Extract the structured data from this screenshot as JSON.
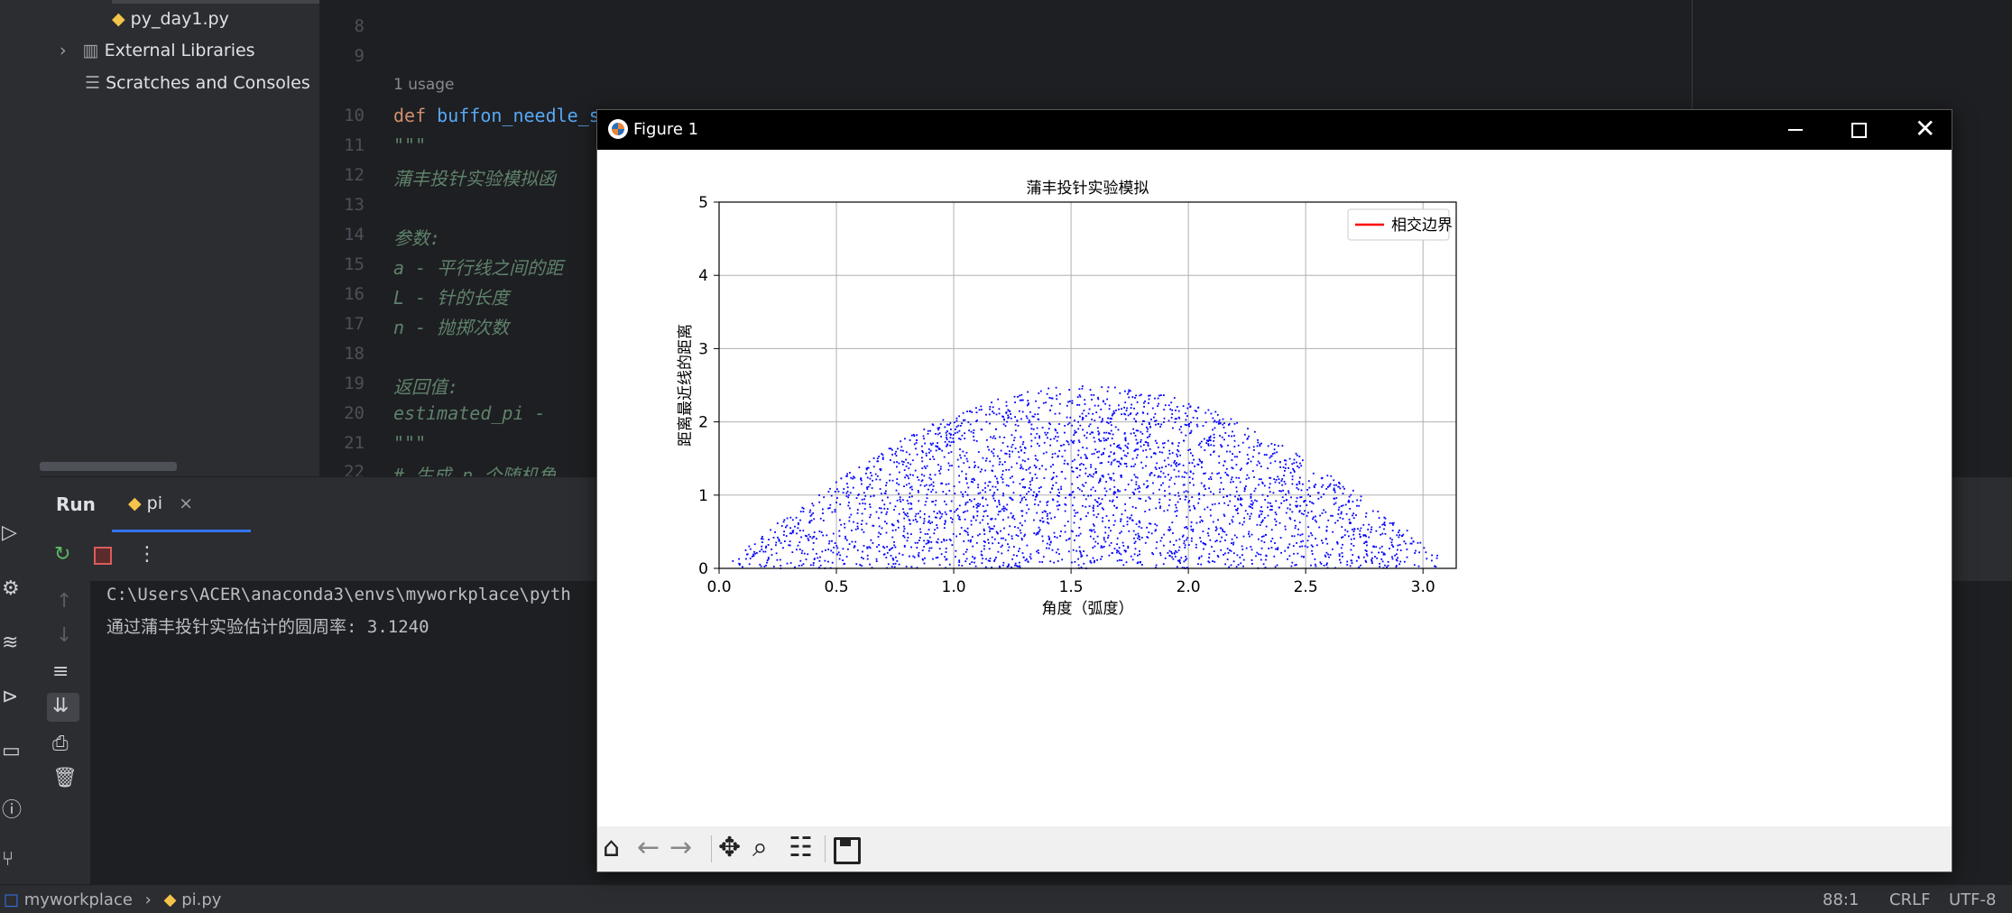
{
  "project": {
    "file_item": "py_day1.py",
    "external_libraries": "External Libraries",
    "scratches": "Scratches and Consoles"
  },
  "editor": {
    "lines": [
      {
        "n": "8",
        "text": ""
      },
      {
        "n": "9",
        "text": ""
      },
      {
        "n": "10",
        "text": "def buffon_needle_s"
      },
      {
        "n": "11",
        "text": "    \"\"\""
      },
      {
        "n": "12",
        "text": "    蒲丰投针实验模拟函"
      },
      {
        "n": "13",
        "text": ""
      },
      {
        "n": "14",
        "text": "    参数:"
      },
      {
        "n": "15",
        "text": "    a - 平行线之间的距"
      },
      {
        "n": "16",
        "text": "    L - 针的长度"
      },
      {
        "n": "17",
        "text": "    n - 抛掷次数"
      },
      {
        "n": "18",
        "text": ""
      },
      {
        "n": "19",
        "text": "    返回值:"
      },
      {
        "n": "20",
        "text": "    estimated_pi -"
      },
      {
        "n": "21",
        "text": "    \"\"\""
      },
      {
        "n": "22",
        "text": "    # 生成 n 个随机角"
      }
    ],
    "usage_hint": "1 usage"
  },
  "run": {
    "title": "Run",
    "tab": "pi",
    "console_lines": [
      "C:\\Users\\ACER\\anaconda3\\envs\\myworkplace\\pyth",
      "通过蒲丰投针实验估计的圆周率: 3.1240"
    ]
  },
  "status": {
    "project": "myworkplace",
    "file": "pi.py",
    "position": "88:1",
    "line_sep": "CRLF",
    "encoding": "UTF-8"
  },
  "figure": {
    "window_title": "Figure 1",
    "colors": {
      "points": "#0000ff",
      "line": "#ff0000"
    }
  },
  "chart_data": {
    "type": "scatter",
    "title": "蒲丰投针实验模拟",
    "xlabel": "角度（弧度）",
    "ylabel": "距离最近线的距离",
    "xlim": [
      0,
      3.1416
    ],
    "ylim": [
      0,
      5
    ],
    "xticks": [
      "0.0",
      "0.5",
      "1.0",
      "1.5",
      "2.0",
      "2.5",
      "3.0"
    ],
    "yticks": [
      "0",
      "1",
      "2",
      "3",
      "4",
      "5"
    ],
    "grid": true,
    "legend": {
      "placement": "top-right",
      "entries": [
        "相交边界"
      ]
    },
    "series": [
      {
        "name": "相交边界",
        "kind": "line",
        "formula": "y = 2.5*sin(x)",
        "color": "#ff0000"
      },
      {
        "name": "",
        "kind": "scatter",
        "n": 3124,
        "distribution": "uniform below 2.5*sin(x)",
        "color": "#0000ff"
      }
    ]
  }
}
